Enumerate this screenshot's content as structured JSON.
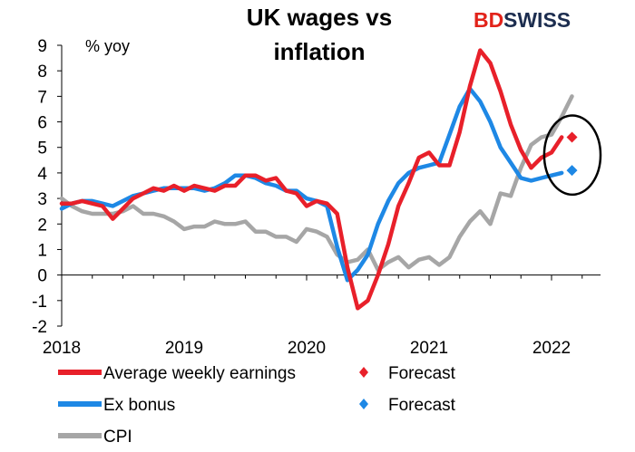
{
  "brand": {
    "part1": "BD",
    "part2": "SWISS"
  },
  "chart_data": {
    "type": "line",
    "title": "UK wages vs inflation",
    "title_lines": [
      "UK wages vs",
      "inflation"
    ],
    "unit_label": "% yoy",
    "xlim": [
      2018.0,
      2022.4
    ],
    "ylim": [
      -2,
      9
    ],
    "x_ticks": [
      2018,
      2019,
      2020,
      2021,
      2022
    ],
    "x_tick_labels": [
      "2018",
      "2019",
      "2020",
      "2021",
      "2022"
    ],
    "y_ticks": [
      -2,
      -1,
      0,
      1,
      2,
      3,
      4,
      5,
      6,
      7,
      8,
      9
    ],
    "y_tick_labels": [
      "-2",
      "-1",
      "0",
      "1",
      "2",
      "3",
      "4",
      "5",
      "6",
      "7",
      "8",
      "9"
    ],
    "grid": false,
    "legend_position": "bottom",
    "series": [
      {
        "name": "Average weekly earnings",
        "color": "#e8202a",
        "x": [
          2018.0,
          2018.083,
          2018.167,
          2018.25,
          2018.333,
          2018.417,
          2018.5,
          2018.583,
          2018.667,
          2018.75,
          2018.833,
          2018.917,
          2019.0,
          2019.083,
          2019.167,
          2019.25,
          2019.333,
          2019.417,
          2019.5,
          2019.583,
          2019.667,
          2019.75,
          2019.833,
          2019.917,
          2020.0,
          2020.083,
          2020.167,
          2020.25,
          2020.333,
          2020.417,
          2020.5,
          2020.583,
          2020.667,
          2020.75,
          2020.833,
          2020.917,
          2021.0,
          2021.083,
          2021.167,
          2021.25,
          2021.333,
          2021.417,
          2021.5,
          2021.583,
          2021.667,
          2021.75,
          2021.833,
          2021.917,
          2022.0,
          2022.083
        ],
        "y": [
          2.8,
          2.8,
          2.9,
          2.8,
          2.7,
          2.2,
          2.6,
          3.0,
          3.2,
          3.4,
          3.3,
          3.5,
          3.3,
          3.5,
          3.4,
          3.3,
          3.5,
          3.5,
          3.9,
          3.9,
          3.7,
          3.8,
          3.3,
          3.2,
          2.7,
          2.9,
          2.8,
          2.4,
          0.3,
          -1.3,
          -1.0,
          0.0,
          1.2,
          2.7,
          3.6,
          4.6,
          4.8,
          4.3,
          4.3,
          5.6,
          7.4,
          8.8,
          8.3,
          7.2,
          5.9,
          4.9,
          4.2,
          4.6,
          4.8,
          5.4
        ],
        "forecast": {
          "x": 2022.167,
          "y": 5.4,
          "label": "Forecast"
        }
      },
      {
        "name": "Ex bonus",
        "color": "#1e88e5",
        "x": [
          2018.0,
          2018.083,
          2018.167,
          2018.25,
          2018.333,
          2018.417,
          2018.5,
          2018.583,
          2018.667,
          2018.75,
          2018.833,
          2018.917,
          2019.0,
          2019.083,
          2019.167,
          2019.25,
          2019.333,
          2019.417,
          2019.5,
          2019.583,
          2019.667,
          2019.75,
          2019.833,
          2019.917,
          2020.0,
          2020.083,
          2020.167,
          2020.25,
          2020.333,
          2020.417,
          2020.5,
          2020.583,
          2020.667,
          2020.75,
          2020.833,
          2020.917,
          2021.0,
          2021.083,
          2021.167,
          2021.25,
          2021.333,
          2021.417,
          2021.5,
          2021.583,
          2021.667,
          2021.75,
          2021.833,
          2021.917,
          2022.0,
          2022.083
        ],
        "y": [
          2.6,
          2.8,
          2.9,
          2.9,
          2.8,
          2.7,
          2.9,
          3.1,
          3.2,
          3.3,
          3.4,
          3.4,
          3.4,
          3.4,
          3.3,
          3.4,
          3.6,
          3.9,
          3.9,
          3.8,
          3.6,
          3.5,
          3.3,
          3.3,
          3.0,
          2.9,
          2.7,
          1.1,
          -0.2,
          0.2,
          0.8,
          2.0,
          2.9,
          3.6,
          4.0,
          4.2,
          4.3,
          4.4,
          5.5,
          6.6,
          7.3,
          6.8,
          6.0,
          5.0,
          4.4,
          3.8,
          3.7,
          3.8,
          3.9,
          4.0
        ],
        "forecast": {
          "x": 2022.167,
          "y": 4.1,
          "label": "Forecast"
        }
      },
      {
        "name": "CPI",
        "color": "#a6a6a6",
        "x": [
          2018.0,
          2018.083,
          2018.167,
          2018.25,
          2018.333,
          2018.417,
          2018.5,
          2018.583,
          2018.667,
          2018.75,
          2018.833,
          2018.917,
          2019.0,
          2019.083,
          2019.167,
          2019.25,
          2019.333,
          2019.417,
          2019.5,
          2019.583,
          2019.667,
          2019.75,
          2019.833,
          2019.917,
          2020.0,
          2020.083,
          2020.167,
          2020.25,
          2020.333,
          2020.417,
          2020.5,
          2020.583,
          2020.667,
          2020.75,
          2020.833,
          2020.917,
          2021.0,
          2021.083,
          2021.167,
          2021.25,
          2021.333,
          2021.417,
          2021.5,
          2021.583,
          2021.667,
          2021.75,
          2021.833,
          2021.917,
          2022.0,
          2022.083,
          2022.167
        ],
        "y": [
          3.0,
          2.7,
          2.5,
          2.4,
          2.4,
          2.4,
          2.5,
          2.7,
          2.4,
          2.4,
          2.3,
          2.1,
          1.8,
          1.9,
          1.9,
          2.1,
          2.0,
          2.0,
          2.1,
          1.7,
          1.7,
          1.5,
          1.5,
          1.3,
          1.8,
          1.7,
          1.5,
          0.8,
          0.5,
          0.6,
          1.0,
          0.2,
          0.5,
          0.7,
          0.3,
          0.6,
          0.7,
          0.4,
          0.7,
          1.5,
          2.1,
          2.5,
          2.0,
          3.2,
          3.1,
          4.2,
          5.1,
          5.4,
          5.5,
          6.2,
          7.0
        ]
      }
    ],
    "annotation": {
      "type": "ellipse",
      "center_x": 2022.17,
      "center_y": 4.7,
      "rx_years": 0.23,
      "ry_units": 1.55,
      "color": "#000000"
    }
  }
}
